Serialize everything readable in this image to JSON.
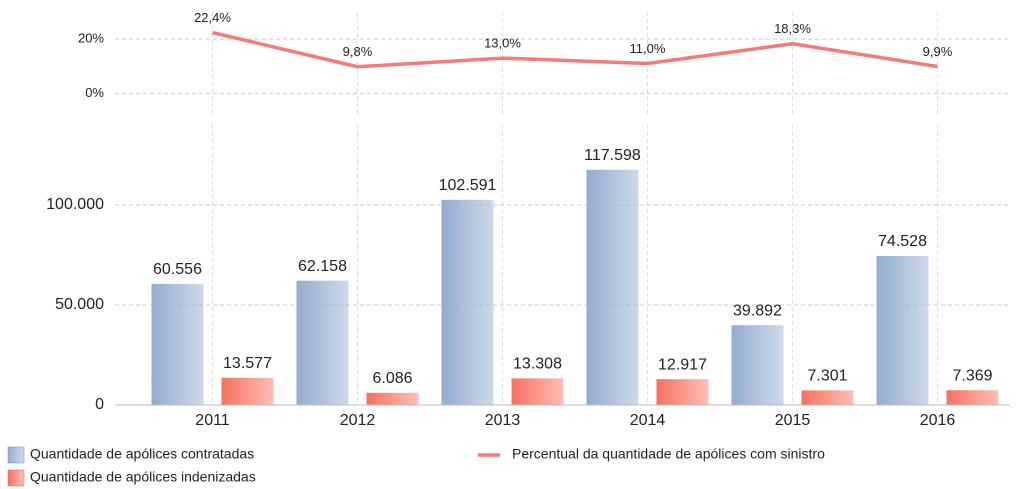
{
  "chart_data": [
    {
      "type": "line",
      "categories": [
        "2011",
        "2012",
        "2013",
        "2014",
        "2015",
        "2016"
      ],
      "series": [
        {
          "name": "Percentual da quantidade de apólices com sinistro",
          "color": "#f47a7a",
          "values": [
            22.4,
            9.8,
            13.0,
            11.0,
            18.3,
            9.9
          ],
          "value_labels": [
            "22,4%",
            "9,8%",
            "13,0%",
            "11,0%",
            "18,3%",
            "9,9%"
          ]
        }
      ],
      "ylim": [
        -8,
        30
      ],
      "yticks": [
        {
          "value": 0,
          "label": "0%"
        },
        {
          "value": 20,
          "label": "20%"
        }
      ],
      "grid": true
    },
    {
      "type": "bar",
      "categories": [
        "2011",
        "2012",
        "2013",
        "2014",
        "2015",
        "2016"
      ],
      "series": [
        {
          "name": "Quantidade de apólices contratadas",
          "color": "#93acd0",
          "values": [
            60556,
            62158,
            102591,
            117598,
            39892,
            74528
          ],
          "value_labels": [
            "60.556",
            "62.158",
            "102.591",
            "117.598",
            "39.892",
            "74.528"
          ]
        },
        {
          "name": "Quantidade de apólices indenizadas",
          "color": "#f8705e",
          "values": [
            13577,
            6086,
            13308,
            12917,
            7301,
            7369
          ],
          "value_labels": [
            "13.577",
            "6.086",
            "13.308",
            "12.917",
            "7.301",
            "7.369"
          ]
        }
      ],
      "ylim": [
        0,
        140000
      ],
      "yticks": [
        0,
        {
          "value": 50000,
          "label": "50.000"
        },
        {
          "value": 100000,
          "label": "100.000"
        }
      ],
      "grid": true
    }
  ]
}
